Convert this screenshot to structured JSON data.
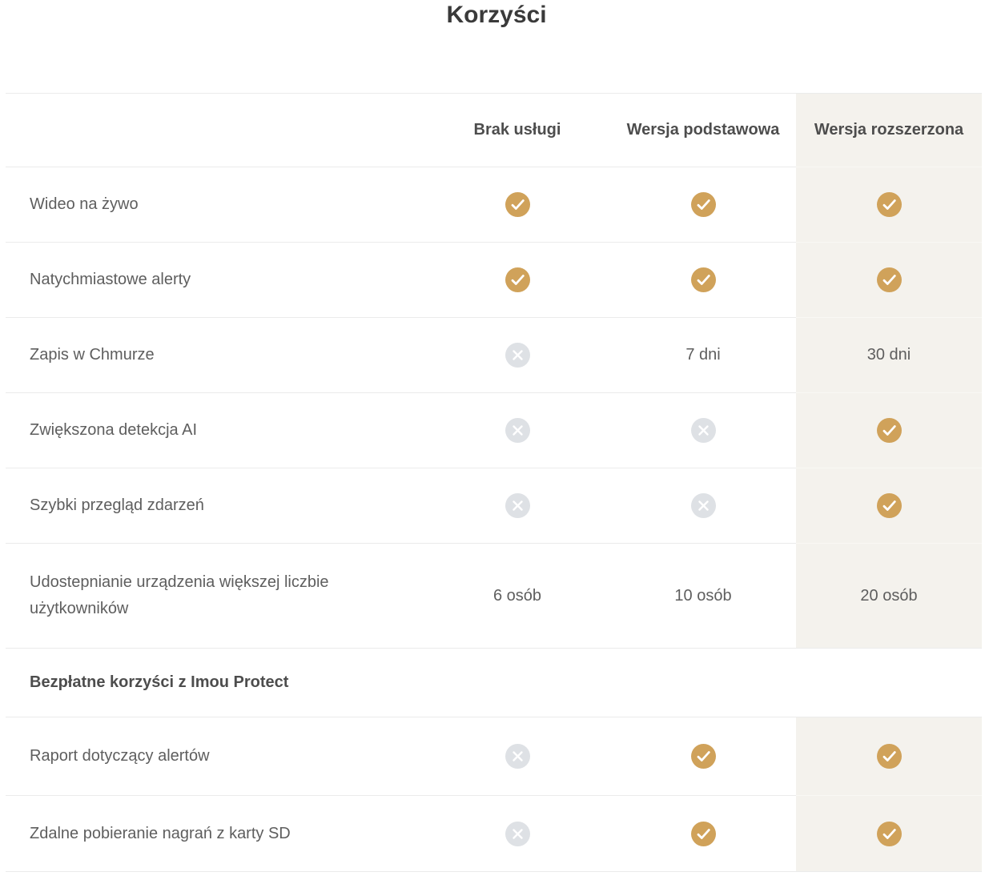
{
  "title": "Korzyści",
  "table": {
    "columns": [
      {
        "label": ""
      },
      {
        "label": "Brak usługi"
      },
      {
        "label": "Wersja podstawowa"
      },
      {
        "label": "Wersja rozszerzona",
        "highlighted": true
      }
    ],
    "rows": [
      {
        "label": "Wideo na żywo",
        "cells": [
          {
            "icon": "check"
          },
          {
            "icon": "check"
          },
          {
            "icon": "check"
          }
        ]
      },
      {
        "label": "Natychmiastowe alerty",
        "cells": [
          {
            "icon": "check"
          },
          {
            "icon": "check"
          },
          {
            "icon": "check"
          }
        ]
      },
      {
        "label": "Zapis w Chmurze",
        "cells": [
          {
            "icon": "cross"
          },
          {
            "text": "7 dni"
          },
          {
            "text": "30 dni"
          }
        ]
      },
      {
        "label": "Zwiększona detekcja AI",
        "cells": [
          {
            "icon": "cross"
          },
          {
            "icon": "cross"
          },
          {
            "icon": "check"
          }
        ]
      },
      {
        "label": "Szybki przegląd zdarzeń",
        "cells": [
          {
            "icon": "cross"
          },
          {
            "icon": "cross"
          },
          {
            "icon": "check"
          }
        ]
      },
      {
        "label": "Udostepnianie urządzenia większej liczbie użytkowników",
        "cells": [
          {
            "text": "6 osób"
          },
          {
            "text": "10 osób"
          },
          {
            "text": "20 osób"
          }
        ]
      },
      {
        "type": "section",
        "label": "Bezpłatne korzyści z Imou Protect"
      },
      {
        "label": "Raport dotyczący alertów",
        "cells": [
          {
            "icon": "cross"
          },
          {
            "icon": "check"
          },
          {
            "icon": "check"
          }
        ]
      },
      {
        "label": "Zdalne pobieranie nagrań z karty SD",
        "cells": [
          {
            "icon": "cross"
          },
          {
            "icon": "check"
          },
          {
            "icon": "check"
          }
        ]
      }
    ]
  },
  "colors": {
    "check_bg": "#d0a25a",
    "cross_bg": "#dee1e5",
    "highlight_bg": "#f4f2ed",
    "divider": "#ebebeb",
    "title_text": "#3a3a3a",
    "header_text": "#4d4d4d",
    "label_text": "#5e5e5e"
  }
}
